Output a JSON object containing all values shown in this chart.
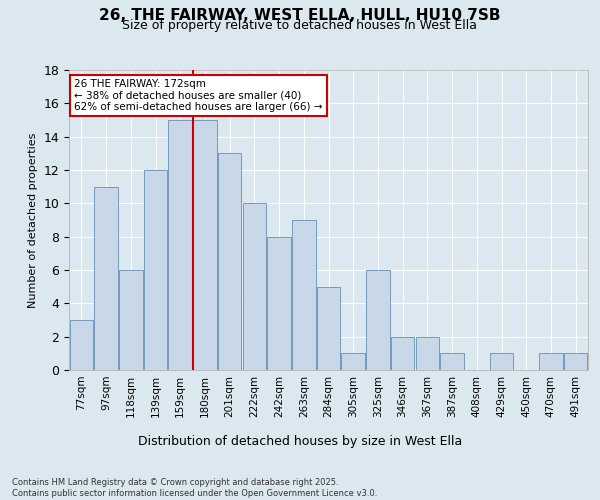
{
  "title": "26, THE FAIRWAY, WEST ELLA, HULL, HU10 7SB",
  "subtitle": "Size of property relative to detached houses in West Ella",
  "xlabel": "Distribution of detached houses by size in West Ella",
  "ylabel": "Number of detached properties",
  "categories": [
    "77sqm",
    "97sqm",
    "118sqm",
    "139sqm",
    "159sqm",
    "180sqm",
    "201sqm",
    "222sqm",
    "242sqm",
    "263sqm",
    "284sqm",
    "305sqm",
    "325sqm",
    "346sqm",
    "367sqm",
    "387sqm",
    "408sqm",
    "429sqm",
    "450sqm",
    "470sqm",
    "491sqm"
  ],
  "values": [
    3,
    11,
    6,
    12,
    15,
    15,
    13,
    10,
    8,
    9,
    5,
    1,
    6,
    2,
    2,
    1,
    0,
    1,
    0,
    1,
    1
  ],
  "bar_color": "#c8d8e8",
  "bar_edge_color": "#7799bb",
  "reference_line_color": "#cc0000",
  "reference_line_x": 4.5,
  "annotation_text": "26 THE FAIRWAY: 172sqm\n← 38% of detached houses are smaller (40)\n62% of semi-detached houses are larger (66) →",
  "annotation_box_facecolor": "#ffffff",
  "annotation_box_edgecolor": "#cc0000",
  "ylim": [
    0,
    18
  ],
  "yticks": [
    0,
    2,
    4,
    6,
    8,
    10,
    12,
    14,
    16,
    18
  ],
  "background_color": "#dce8f0",
  "footer_line1": "Contains HM Land Registry data © Crown copyright and database right 2025.",
  "footer_line2": "Contains public sector information licensed under the Open Government Licence v3.0."
}
